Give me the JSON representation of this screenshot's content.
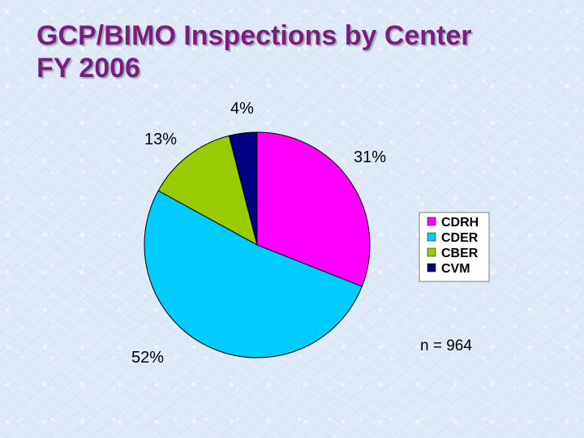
{
  "slide": {
    "title_line1": "GCP/BIMO Inspections by Center",
    "title_line2": "FY 2006",
    "note": "n = 964"
  },
  "chart_data": {
    "type": "pie",
    "title": "GCP/BIMO Inspections by Center FY 2006",
    "start_angle_deg": 0,
    "direction": "clockwise",
    "legend_position": "right",
    "slices": [
      {
        "name": "CDRH",
        "value": 31,
        "label": "31%",
        "color": "#ff00ff"
      },
      {
        "name": "CDER",
        "value": 52,
        "label": "52%",
        "color": "#00ccff"
      },
      {
        "name": "CBER",
        "value": 13,
        "label": "13%",
        "color": "#99cc00"
      },
      {
        "name": "CVM",
        "value": 4,
        "label": "4%",
        "color": "#000080"
      }
    ]
  }
}
